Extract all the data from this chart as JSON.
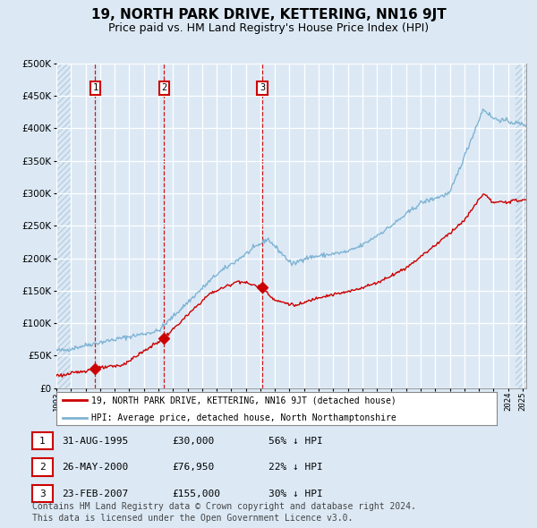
{
  "title": "19, NORTH PARK DRIVE, KETTERING, NN16 9JT",
  "subtitle": "Price paid vs. HM Land Registry's House Price Index (HPI)",
  "title_fontsize": 11,
  "subtitle_fontsize": 9,
  "background_color": "#dce9f5",
  "plot_bg_color": "#dce9f5",
  "hatch_color": "#b8cfe0",
  "grid_color": "#ffffff",
  "ylim": [
    0,
    500000
  ],
  "yticks": [
    0,
    50000,
    100000,
    150000,
    200000,
    250000,
    300000,
    350000,
    400000,
    450000,
    500000
  ],
  "sale_dates_numeric": [
    1995.664,
    2000.397,
    2007.139
  ],
  "sale_prices": [
    30000,
    76950,
    155000
  ],
  "sale_labels": [
    "1",
    "2",
    "3"
  ],
  "sale_pct": [
    "56% ↓ HPI",
    "22% ↓ HPI",
    "30% ↓ HPI"
  ],
  "sale_date_strs": [
    "31-AUG-1995",
    "26-MAY-2000",
    "23-FEB-2007"
  ],
  "sale_price_strs": "£30,000|£76,950|£155,000",
  "property_line_color": "#cc0000",
  "hpi_line_color": "#7fb3d3",
  "legend_label_property": "19, NORTH PARK DRIVE, KETTERING, NN16 9JT (detached house)",
  "legend_label_hpi": "HPI: Average price, detached house, North Northamptonshire",
  "footnote_line1": "Contains HM Land Registry data © Crown copyright and database right 2024.",
  "footnote_line2": "This data is licensed under the Open Government Licence v3.0.",
  "footnote_fontsize": 7,
  "xmin": 1993.0,
  "xmax": 2025.25
}
